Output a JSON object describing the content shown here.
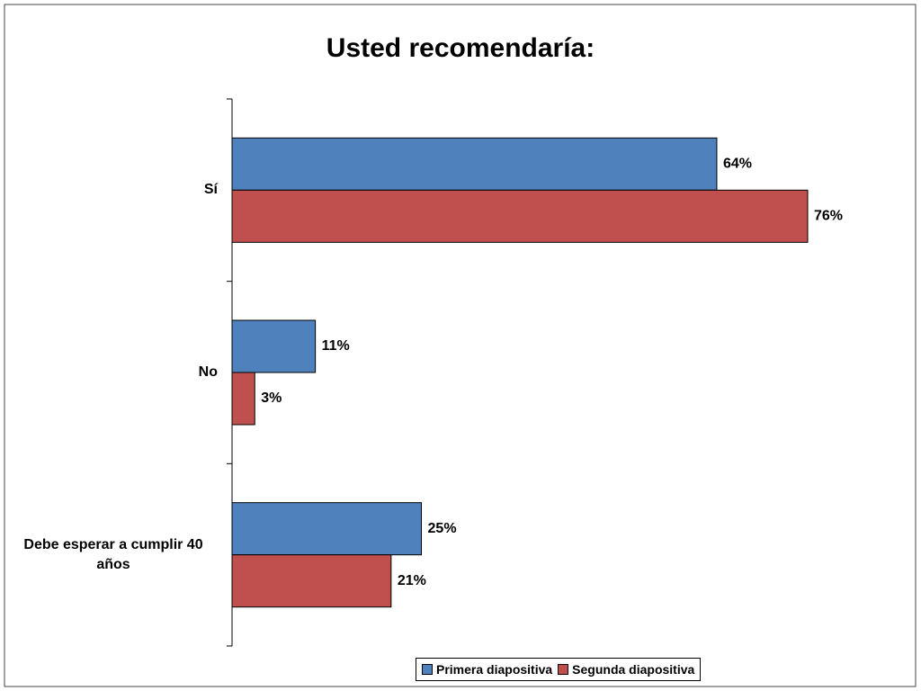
{
  "chart_data": {
    "type": "hbar",
    "title": "Usted recomendaría:",
    "categories": [
      "Sí",
      "No",
      "Debe esperar a cumplir 40 años"
    ],
    "series": [
      {
        "name": "Primera diapositiva",
        "color": "#4f81bd",
        "values": [
          64,
          11,
          25
        ],
        "value_labels": [
          "64%",
          "11%",
          "25%"
        ]
      },
      {
        "name": "Segunda diapositiva",
        "color": "#c0504d",
        "values": [
          76,
          3,
          21
        ],
        "value_labels": [
          "76%",
          "3%",
          "21%"
        ]
      }
    ],
    "legend": "bottom-right"
  }
}
